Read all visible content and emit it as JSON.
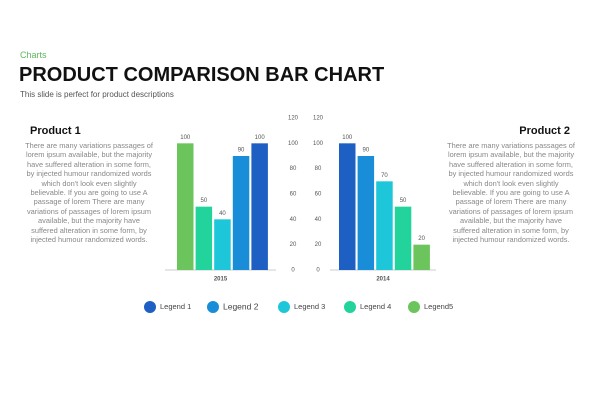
{
  "header": {
    "category": "Charts",
    "title": "PRODUCT COMPARISON BAR CHART",
    "subtitle": "This slide is perfect for product descriptions"
  },
  "products": [
    {
      "title": "Product 1",
      "text": "There are many variations passages of lorem ipsum available, but the majority have suffered alteration in some form, by injected humour randomized words which don't look even slightly believable. If you are going to use A passage of lorem There are many variations of passages of lorem ipsum available, but the majority have suffered alteration in some form, by injected humour randomized words."
    },
    {
      "title": "Product 2",
      "text": "There are many variations passages of lorem ipsum available, but the majority have suffered alteration in some form, by injected humour randomized words which don't look even slightly believable. If you are going to use A passage of lorem There are many variations of passages of lorem ipsum available, but the majority have suffered alteration in some form, by injected humour randomized words."
    }
  ],
  "chart_data": {
    "type": "bar",
    "categories": [
      "2015",
      "2014"
    ],
    "series": [
      {
        "name": "Legend 1",
        "color": "#1d5fc2",
        "values": [
          100,
          100
        ]
      },
      {
        "name": "Legend 2",
        "color": "#1a8dd9",
        "values": [
          90,
          90
        ]
      },
      {
        "name": "Legend 3",
        "color": "#1ec6da",
        "values": [
          40,
          70
        ]
      },
      {
        "name": "Legend 4",
        "color": "#22d49b",
        "values": [
          50,
          50
        ]
      },
      {
        "name": "Legend5",
        "color": "#6cc45c",
        "values": [
          100,
          20
        ]
      }
    ],
    "ylim": [
      0,
      120
    ],
    "yticks": [
      0,
      20,
      40,
      60,
      80,
      100,
      120
    ]
  }
}
